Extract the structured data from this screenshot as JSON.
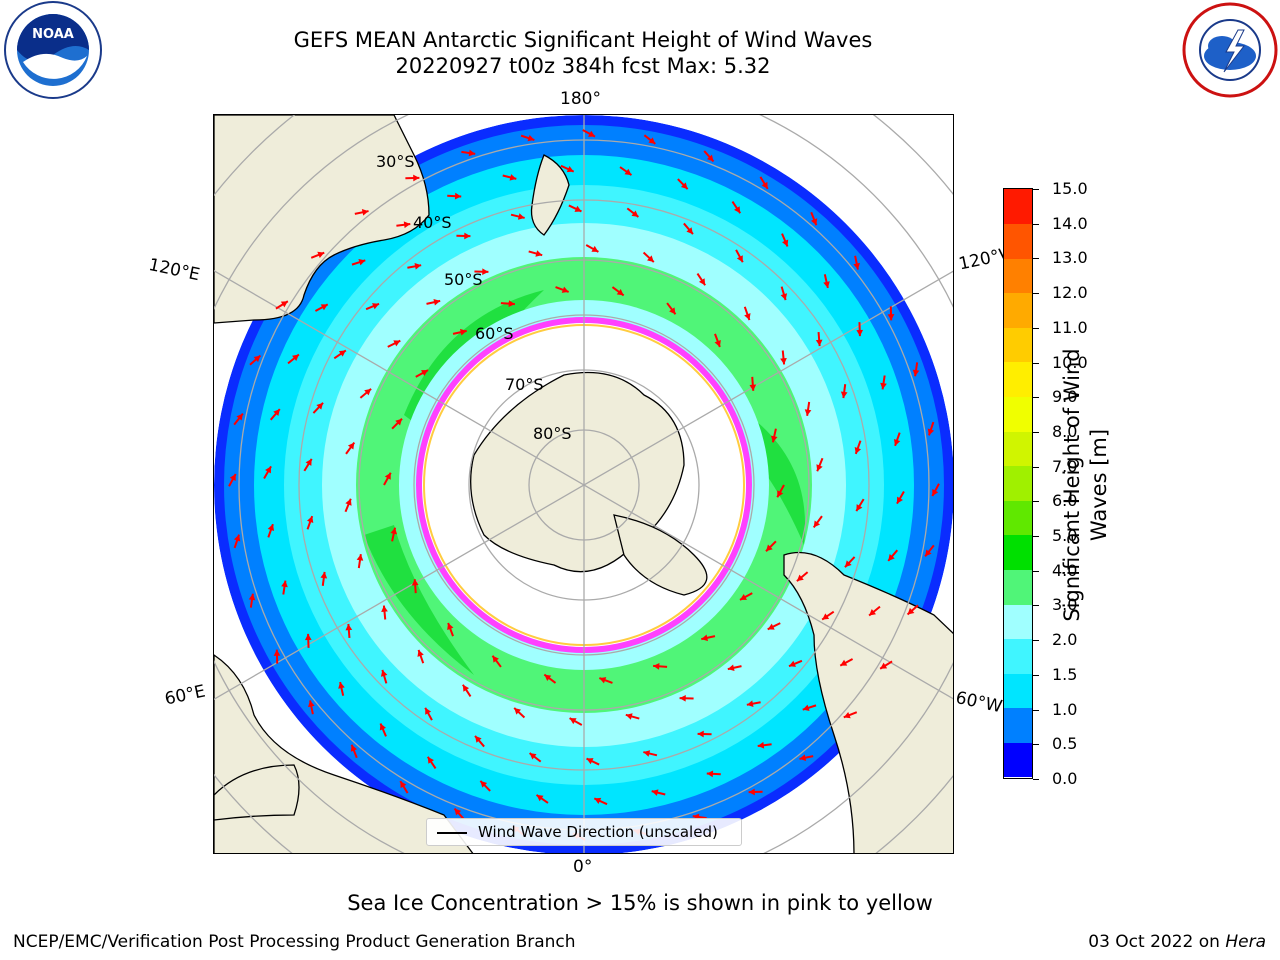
{
  "header": {
    "title_line1": "GEFS MEAN Antarctic Significant Height of Wind Waves",
    "title_line2": "20220927 t00z 384h fcst   Max: 5.32"
  },
  "map": {
    "projection": "south-polar-stereographic",
    "lon_labels": {
      "top": "180°",
      "bottom": "0°",
      "left_upper": "120°E",
      "right_upper": "120°W",
      "left_lower": "60°E",
      "right_lower": "60°W"
    },
    "lat_labels": [
      "30°S",
      "40°S",
      "50°S",
      "60°S",
      "70°S",
      "80°S"
    ],
    "legend": {
      "label": "Wind Wave Direction (unscaled)"
    },
    "arrow_color": "#ff0000",
    "land_color": "#efedda"
  },
  "colorbar": {
    "label": "Significant Height of Wind Waves [m]",
    "ticks": [
      "0.0",
      "0.5",
      "1.0",
      "1.5",
      "2.0",
      "3.0",
      "4.0",
      "5.0",
      "6.0",
      "7.0",
      "8.0",
      "9.0",
      "10.0",
      "11.0",
      "12.0",
      "13.0",
      "14.0",
      "15.0"
    ],
    "colors": [
      "#0000ff",
      "#0080ff",
      "#00e5ff",
      "#40f5ff",
      "#a0ffff",
      "#50f578",
      "#00e000",
      "#60e800",
      "#a0f000",
      "#d0f500",
      "#f0ff00",
      "#ffee00",
      "#ffcc00",
      "#ffaa00",
      "#ff8000",
      "#ff5500",
      "#ff1a00"
    ]
  },
  "footer": {
    "subtitle": "Sea Ice Concentration > 15% is shown in pink to yellow",
    "left": "NCEP/EMC/Verification Post Processing Product Generation Branch",
    "right_date": "03 Oct 2022 on ",
    "right_machine": "Hera"
  }
}
